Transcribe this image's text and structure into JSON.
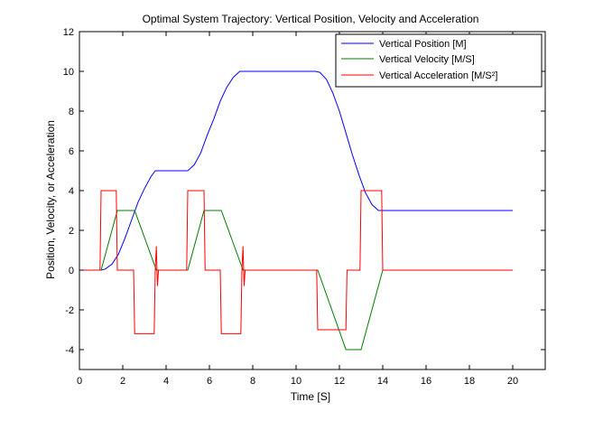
{
  "chart_data": {
    "type": "line",
    "title": "Optimal System Trajectory: Vertical Position, Velocity and Acceleration",
    "xlabel": "Time [S]",
    "ylabel": "Position, Velocity, or Acceleration",
    "xlim": [
      0,
      21.5
    ],
    "ylim": [
      -5,
      12
    ],
    "xticks": [
      0,
      2,
      4,
      6,
      8,
      10,
      12,
      14,
      16,
      18,
      20
    ],
    "yticks": [
      -4,
      -2,
      0,
      2,
      4,
      6,
      8,
      10,
      12
    ],
    "grid": false,
    "legend_position": "top-right",
    "series": [
      {
        "name": "Vertical Position [M]",
        "color": "#0000ff",
        "x": [
          0,
          1.0,
          1.2,
          1.5,
          1.8,
          2.1,
          2.4,
          2.7,
          3.0,
          3.3,
          3.5,
          5.0,
          5.3,
          5.6,
          5.9,
          6.2,
          6.5,
          6.8,
          7.1,
          7.4,
          7.6,
          10.9,
          11.1,
          11.4,
          11.7,
          12.0,
          12.3,
          12.6,
          12.9,
          13.2,
          13.5,
          13.8,
          20.0
        ],
        "y": [
          0,
          0,
          0.06,
          0.3,
          0.8,
          1.6,
          2.5,
          3.4,
          4.1,
          4.7,
          5.0,
          5.0,
          5.3,
          5.9,
          6.8,
          7.6,
          8.5,
          9.2,
          9.7,
          10.0,
          10.0,
          10.0,
          9.95,
          9.6,
          8.9,
          8.0,
          6.9,
          5.8,
          4.8,
          3.9,
          3.3,
          3.0,
          3.0
        ]
      },
      {
        "name": "Vertical Velocity [M/S]",
        "color": "#007f00",
        "x": [
          0,
          1.0,
          1.75,
          2.55,
          3.55,
          5.0,
          5.75,
          6.55,
          7.55,
          11.0,
          12.3,
          13.0,
          14.0,
          20.0
        ],
        "y": [
          0,
          0,
          3.0,
          3.0,
          0,
          0,
          3.0,
          3.0,
          0,
          0,
          -4.0,
          -4.0,
          0,
          0
        ]
      },
      {
        "name": "Vertical Acceleration [M/S²]",
        "color": "#ff0000",
        "x": [
          0,
          0.95,
          1.0,
          1.7,
          1.75,
          2.5,
          2.55,
          3.45,
          3.5,
          3.55,
          3.6,
          3.65,
          4.95,
          5.0,
          5.75,
          5.8,
          6.5,
          6.55,
          7.45,
          7.5,
          7.55,
          7.6,
          7.65,
          10.95,
          11.0,
          12.3,
          12.35,
          12.95,
          13.0,
          13.95,
          14.0,
          20.0
        ],
        "y": [
          0,
          0,
          4.0,
          4.0,
          0,
          0,
          -3.2,
          -3.2,
          0,
          1.2,
          -0.8,
          0,
          0,
          4.0,
          4.0,
          0,
          0,
          -3.2,
          -3.2,
          0,
          1.2,
          -0.8,
          0,
          0,
          -3.0,
          -3.0,
          0,
          0,
          4.0,
          4.0,
          0,
          0
        ]
      }
    ]
  }
}
